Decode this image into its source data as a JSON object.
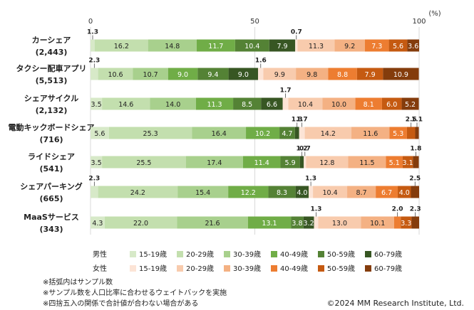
{
  "chart_data": {
    "type": "bar",
    "orientation": "horizontal",
    "stacked": "100%",
    "unit": "(%)",
    "xlim": [
      0,
      100
    ],
    "xticks": [
      0,
      50,
      100
    ],
    "grid": true,
    "categories": [
      "カーシェア (2,443)",
      "タクシー配車アプリ (5,513)",
      "シェアサイクル (2,132)",
      "電動キックボードシェア (716)",
      "ライドシェア (541)",
      "シェアパーキング (665)",
      "MaaSサービス (343)"
    ],
    "category_labels": [
      {
        "name": "カーシェア",
        "n": "(2,443)"
      },
      {
        "name": "タクシー配車アプリ",
        "n": "(5,513)"
      },
      {
        "name": "シェアサイクル",
        "n": "(2,132)"
      },
      {
        "name": "電動キックボードシェア",
        "n": "(716)"
      },
      {
        "name": "ライドシェア",
        "n": "(541)"
      },
      {
        "name": "シェアパーキング",
        "n": "(665)"
      },
      {
        "name": "MaaSサービス",
        "n": "(343)"
      }
    ],
    "series": [
      {
        "name": "15-19歳",
        "group": "男性",
        "color": "#d7e9c8",
        "values": [
          1.3,
          2.3,
          3.5,
          5.6,
          3.5,
          2.3,
          4.3
        ]
      },
      {
        "name": "20-29歳",
        "group": "男性",
        "color": "#c3dfae",
        "values": [
          16.2,
          10.6,
          14.6,
          25.3,
          25.5,
          24.2,
          22.0
        ]
      },
      {
        "name": "30-39歳",
        "group": "男性",
        "color": "#a8d08d",
        "values": [
          14.8,
          10.7,
          14.0,
          16.4,
          17.4,
          15.4,
          21.6
        ]
      },
      {
        "name": "40-49歳",
        "group": "男性",
        "color": "#70ad47",
        "values": [
          11.7,
          9.0,
          11.3,
          10.2,
          11.4,
          12.2,
          13.1
        ]
      },
      {
        "name": "50-59歳",
        "group": "男性",
        "color": "#548235",
        "values": [
          10.4,
          9.4,
          8.5,
          4.7,
          5.9,
          8.3,
          3.8
        ]
      },
      {
        "name": "60-79歳",
        "group": "男性",
        "color": "#375623",
        "values": [
          7.9,
          9.0,
          6.6,
          1.3,
          1.2,
          4.0,
          3.2
        ]
      },
      {
        "name": "15-19歳",
        "group": "女性",
        "color": "#fce4d6",
        "values": [
          0.7,
          1.6,
          1.7,
          1.7,
          0.7,
          1.3,
          1.3
        ]
      },
      {
        "name": "20-29歳",
        "group": "女性",
        "color": "#f8cbad",
        "values": [
          11.3,
          9.9,
          10.4,
          14.2,
          12.8,
          10.4,
          13.0
        ]
      },
      {
        "name": "30-39歳",
        "group": "女性",
        "color": "#f4b183",
        "values": [
          9.2,
          9.8,
          10.0,
          11.6,
          11.5,
          8.7,
          10.1
        ]
      },
      {
        "name": "40-49歳",
        "group": "女性",
        "color": "#ed7d31",
        "values": [
          7.3,
          8.8,
          8.1,
          5.3,
          5.1,
          6.7,
          2.0
        ]
      },
      {
        "name": "50-59歳",
        "group": "女性",
        "color": "#c55a11",
        "values": [
          5.6,
          7.9,
          6.0,
          2.5,
          3.1,
          4.0,
          3.3
        ]
      },
      {
        "name": "60-79歳",
        "group": "女性",
        "color": "#843c0c",
        "values": [
          3.6,
          10.9,
          5.2,
          1.1,
          1.8,
          2.5,
          2.3
        ]
      }
    ],
    "legend": {
      "placement": "bottom",
      "groups": [
        "男性",
        "女性"
      ],
      "labels": [
        "15-19歳",
        "20-29歳",
        "30-39歳",
        "40-49歳",
        "50-59歳",
        "60-79歳"
      ]
    }
  },
  "notes": [
    "※括弧内はサンプル数",
    "※サンプル数を人口比率に合わせるウェイトバックを実施",
    "※四捨五入の関係で合計値が合わない場合がある"
  ],
  "copyright": "©2024 MM Research Institute, Ltd."
}
